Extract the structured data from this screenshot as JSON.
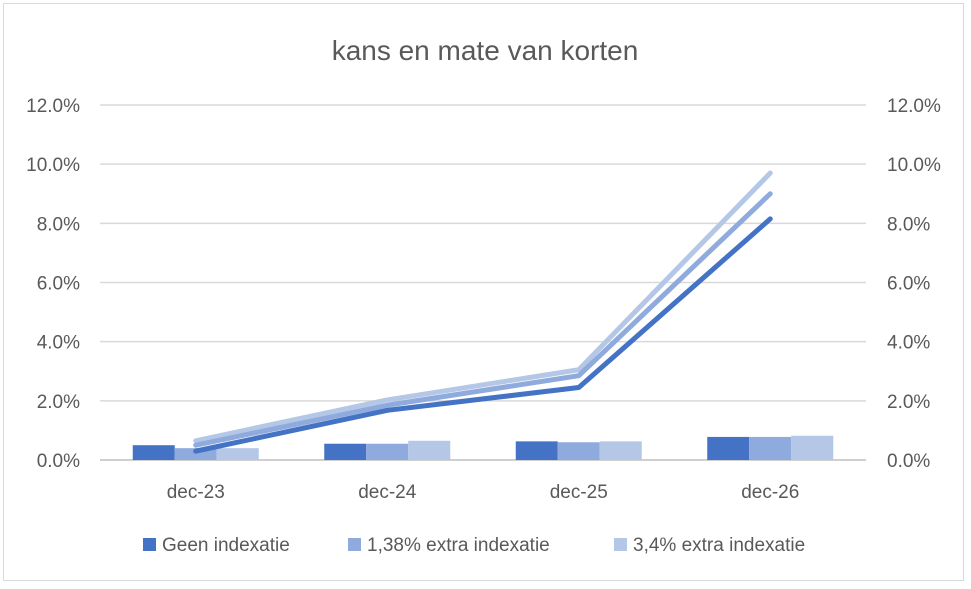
{
  "chart_data": {
    "type": "bar+line",
    "title": "kans en mate van korten",
    "categories": [
      "dec-23",
      "dec-24",
      "dec-25",
      "dec-26"
    ],
    "ylim": [
      0,
      0.12
    ],
    "y_ticks": [
      0,
      0.02,
      0.04,
      0.06,
      0.08,
      0.1,
      0.12
    ],
    "y_tick_labels": [
      "0.0%",
      "2.0%",
      "4.0%",
      "6.0%",
      "8.0%",
      "10.0%",
      "12.0%"
    ],
    "secondary_y_tick_labels": [
      "0.0%",
      "2.0%",
      "4.0%",
      "6.0%",
      "8.0%",
      "10.0%",
      "12.0%"
    ],
    "grid": true,
    "legend_position": "bottom",
    "series": [
      {
        "name": "Geen indexatie",
        "color": "#4472c4",
        "bar_values": [
          0.005,
          0.0055,
          0.0063,
          0.0078
        ],
        "line_values": [
          0.003,
          0.0168,
          0.0245,
          0.0815
        ]
      },
      {
        "name": "1,38% extra indexatie",
        "color": "#8faadc",
        "bar_values": [
          0.004,
          0.0055,
          0.006,
          0.0078
        ],
        "line_values": [
          0.005,
          0.0185,
          0.0285,
          0.09
        ]
      },
      {
        "name": "3,4% extra indexatie",
        "color": "#b4c7e7",
        "bar_values": [
          0.004,
          0.0065,
          0.0063,
          0.0082
        ],
        "line_values": [
          0.0065,
          0.0203,
          0.0305,
          0.097
        ]
      }
    ]
  }
}
